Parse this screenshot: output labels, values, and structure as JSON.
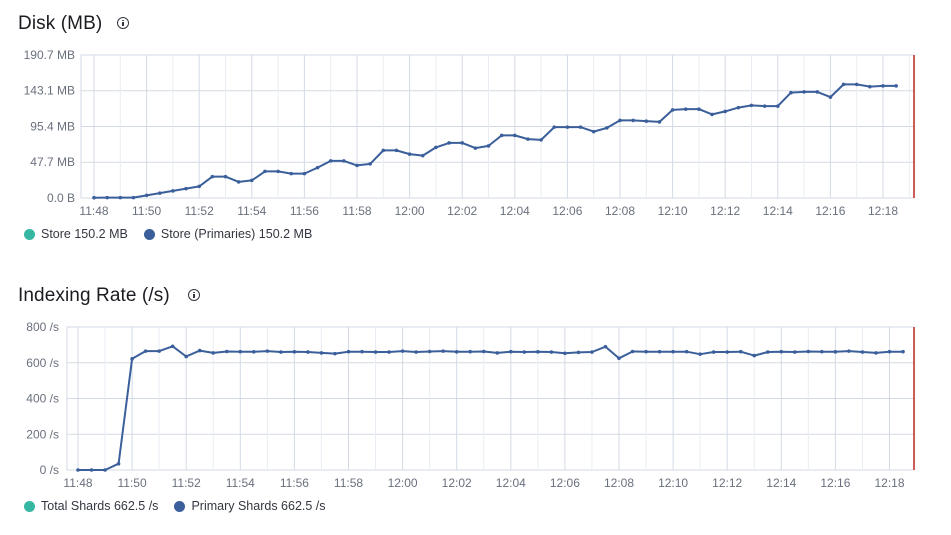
{
  "panels": [
    {
      "title": "Disk (MB)",
      "info_icon": "info-icon",
      "legend": [
        {
          "label": "Store 150.2 MB",
          "color": "#36b7a3"
        },
        {
          "label": "Store (Primaries) 150.2 MB",
          "color": "#3b5f9a"
        }
      ],
      "chart_data": {
        "type": "line",
        "title": "Disk (MB)",
        "y_tick_labels": [
          "190.7 MB",
          "143.1 MB",
          "95.4 MB",
          "47.7 MB",
          "0.0 B"
        ],
        "y_ticks": [
          190.7,
          143.1,
          95.4,
          47.7,
          0
        ],
        "ylim": [
          0,
          190.7
        ],
        "x_tick_labels": [
          "11:48",
          "11:50",
          "11:52",
          "11:54",
          "11:56",
          "11:58",
          "12:00",
          "12:02",
          "12:04",
          "12:06",
          "12:08",
          "12:10",
          "12:12",
          "12:14",
          "12:16",
          "12:18"
        ],
        "x_start": "11:48",
        "x_step_seconds": 30,
        "grid": true,
        "current_marker_color": "#bd271e",
        "series": [
          {
            "name": "Store (Primaries)",
            "color": "#3b5f9a",
            "values": [
              0.4,
              0.5,
              0.5,
              0.5,
              3.5,
              6.5,
              9.5,
              12.5,
              15.5,
              28.5,
              28.5,
              21.5,
              23.5,
              35.5,
              35.5,
              32.5,
              32.5,
              40.5,
              49.5,
              49.5,
              43.5,
              45.5,
              63.5,
              63.5,
              58.5,
              56.5,
              67.5,
              73.5,
              73.5,
              66.5,
              69.5,
              83.5,
              83.5,
              78.5,
              77.5,
              94.5,
              94.5,
              94.5,
              88.5,
              93.5,
              103.5,
              103.5,
              102.5,
              101.5,
              117.5,
              118.5,
              118.5,
              111.5,
              115.5,
              120.5,
              123.5,
              122.5,
              122.5,
              140.5,
              141.5,
              141.5,
              134.5,
              151.5,
              151.5,
              148.5,
              149.5,
              149.5
            ]
          }
        ]
      }
    },
    {
      "title": "Indexing Rate (/s)",
      "info_icon": "info-icon",
      "legend": [
        {
          "label": "Total Shards 662.5 /s",
          "color": "#36b7a3"
        },
        {
          "label": "Primary Shards 662.5 /s",
          "color": "#3b5f9a"
        }
      ],
      "chart_data": {
        "type": "line",
        "title": "Indexing Rate (/s)",
        "y_tick_labels": [
          "800 /s",
          "600 /s",
          "400 /s",
          "200 /s",
          "0 /s"
        ],
        "y_ticks": [
          800,
          600,
          400,
          200,
          0
        ],
        "ylim": [
          0,
          800
        ],
        "x_tick_labels": [
          "11:48",
          "11:50",
          "11:52",
          "11:54",
          "11:56",
          "11:58",
          "12:00",
          "12:02",
          "12:04",
          "12:06",
          "12:08",
          "12:10",
          "12:12",
          "12:14",
          "12:16",
          "12:18"
        ],
        "x_start": "11:48",
        "x_step_seconds": 30,
        "grid": true,
        "current_marker_color": "#bd271e",
        "series": [
          {
            "name": "Primary Shards",
            "color": "#3b5f9a",
            "values": [
              0,
              0,
              0,
              35,
              622,
              665,
              665,
              692,
              635,
              668,
              655,
              663,
              662,
              661,
              665,
              660,
              661,
              660,
              655,
              651,
              662,
              662,
              660,
              660,
              665,
              660,
              663,
              665,
              661,
              662,
              663,
              655,
              662,
              660,
              661,
              660,
              653,
              658,
              660,
              690,
              625,
              663,
              662,
              662,
              662,
              662,
              648,
              660,
              660,
              662,
              640,
              660,
              662,
              660,
              663,
              662,
              661,
              665,
              660,
              655,
              662,
              662
            ]
          }
        ]
      }
    }
  ]
}
